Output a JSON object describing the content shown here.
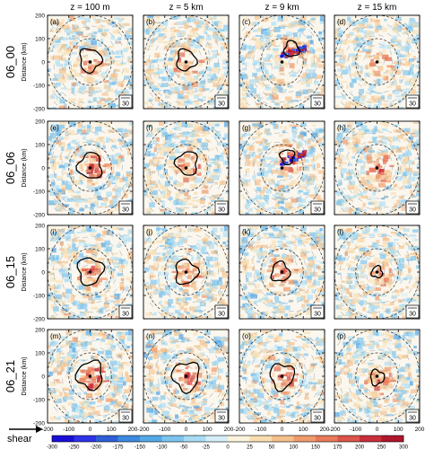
{
  "chart_data": {
    "type": "heatmap",
    "column_titles": [
      "z = 100 m",
      "z = 5 km",
      "z = 9 km",
      "z = 15 km"
    ],
    "row_titles": [
      "06_00",
      "06_06",
      "06_15",
      "06_21"
    ],
    "panel_labels": [
      [
        "(a)",
        "(b)",
        "(c)",
        "(d)"
      ],
      [
        "(e)",
        "(f)",
        "(g)",
        "(h)"
      ],
      [
        "(i)",
        "(j)",
        "(k)",
        "(l)"
      ],
      [
        "(m)",
        "(n)",
        "(o)",
        "(p)"
      ]
    ],
    "reference_vector_label": "30",
    "xlabel": "Distance (km)",
    "ylabel": "Distance (km)",
    "xlim": [
      -200,
      200
    ],
    "ylim": [
      -200,
      200
    ],
    "xticks": [
      -200,
      -100,
      0,
      100,
      200
    ],
    "yticks": [
      -200,
      -100,
      0,
      100,
      200
    ],
    "x_tick_labels": [
      "-200",
      "-100",
      "0",
      "100",
      "200"
    ],
    "y_tick_labels": [
      "-200",
      "-100",
      "0",
      "100",
      "200"
    ],
    "range_rings_km": [
      100,
      200
    ],
    "shear_label": "shear",
    "colorbar": {
      "ticks": [
        "-300",
        "-250",
        "-200",
        "-175",
        "-150",
        "-100",
        "-50",
        "-25",
        "0",
        "25",
        "50",
        "100",
        "150",
        "175",
        "200",
        "250",
        "300"
      ],
      "colors": [
        "#1b0fd6",
        "#2e33e8",
        "#2f5fd8",
        "#3b8ae0",
        "#55a8e8",
        "#7cc4ee",
        "#a8dcf3",
        "#d6eef8",
        "#fbf3dc",
        "#f7ddb0",
        "#f4c08c",
        "#ef9b6c",
        "#e8795a",
        "#dc544a",
        "#c92f3b",
        "#b0162e"
      ]
    },
    "contours": {
      "panels": [
        [
          {
            "cx": 0,
            "cy": 8,
            "r": 50,
            "shift": 1
          },
          {
            "cx": 0,
            "cy": 8,
            "r": 45,
            "shift": 2
          },
          {
            "cx": 45,
            "cy": 55,
            "r": 34,
            "shift": 3
          },
          null
        ],
        [
          {
            "cx": 0,
            "cy": 8,
            "r": 55,
            "shift": 4
          },
          {
            "cx": 5,
            "cy": 20,
            "r": 50,
            "shift": 5
          },
          {
            "cx": 25,
            "cy": 48,
            "r": 32,
            "shift": 6
          },
          null
        ],
        [
          {
            "cx": 0,
            "cy": 5,
            "r": 58,
            "shift": 7
          },
          {
            "cx": 0,
            "cy": 0,
            "r": 52,
            "shift": 8
          },
          {
            "cx": -8,
            "cy": 0,
            "r": 42,
            "shift": 9
          },
          {
            "cx": 0,
            "cy": 0,
            "r": 25,
            "shift": 10
          }
        ],
        [
          {
            "cx": 0,
            "cy": 5,
            "r": 60,
            "shift": 11
          },
          {
            "cx": 0,
            "cy": 0,
            "r": 62,
            "shift": 12
          },
          {
            "cx": 0,
            "cy": 0,
            "r": 55,
            "shift": 13
          },
          {
            "cx": 0,
            "cy": -5,
            "r": 32,
            "shift": 14
          }
        ]
      ]
    },
    "intensity": [
      [
        0.6,
        0.45,
        0.55,
        0.25
      ],
      [
        0.7,
        0.55,
        0.75,
        0.45
      ],
      [
        0.65,
        0.6,
        0.55,
        0.35
      ],
      [
        0.8,
        0.75,
        0.6,
        0.45
      ]
    ]
  }
}
